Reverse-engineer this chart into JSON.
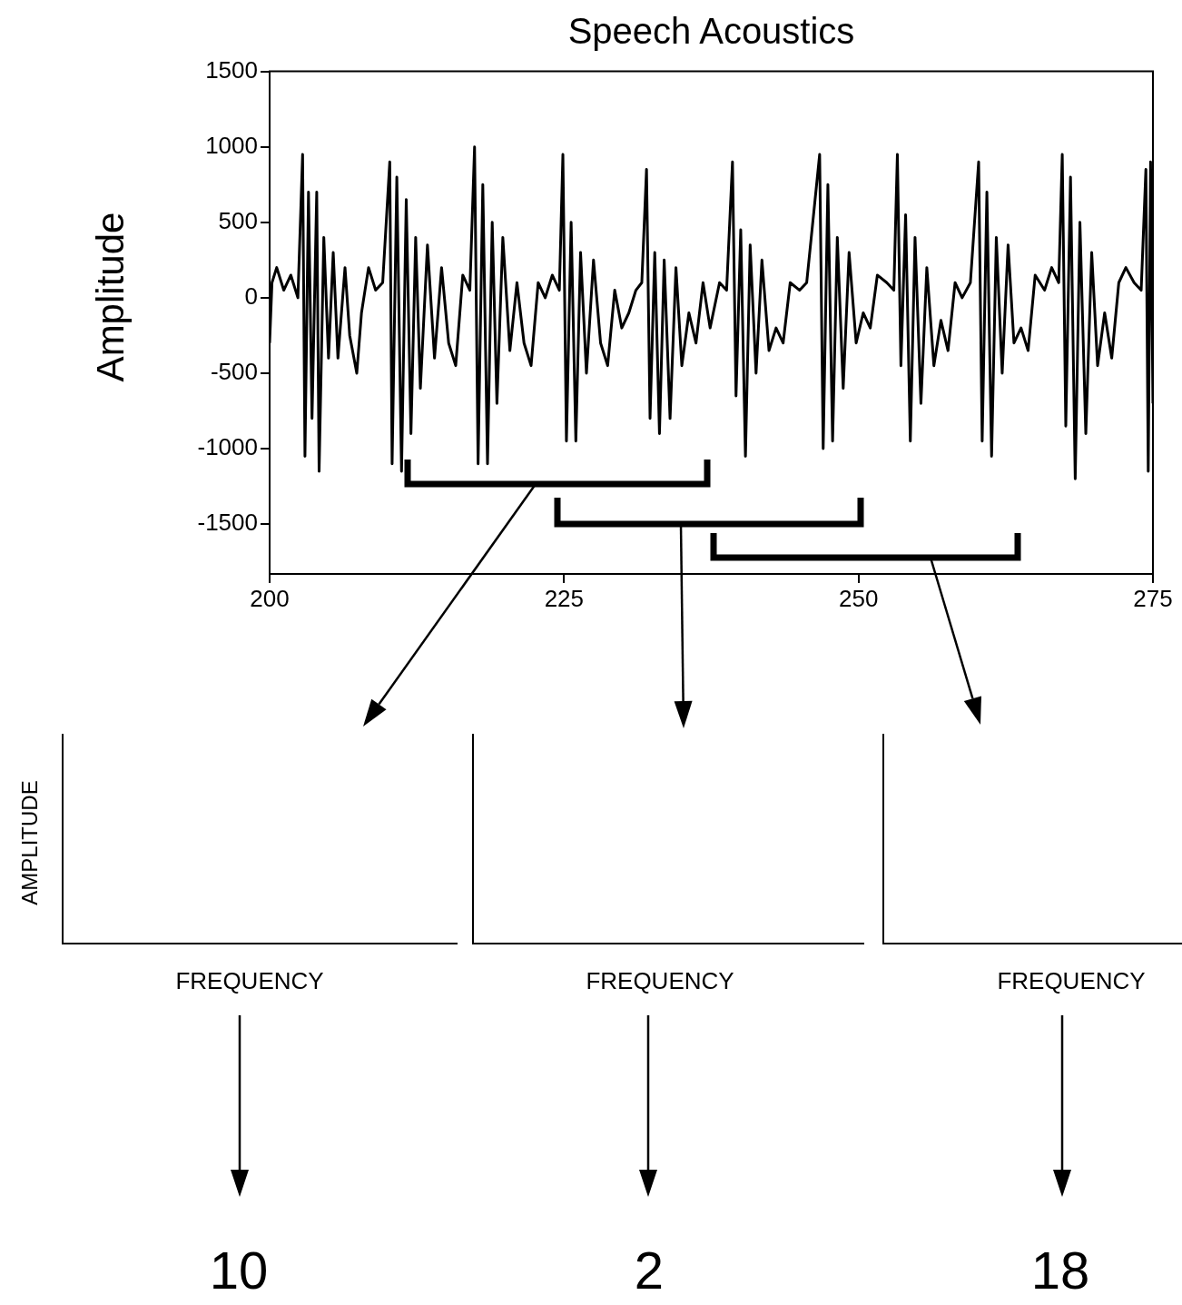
{
  "chart_data": [
    {
      "type": "line",
      "title": "Speech Acoustics",
      "ylabel": "Amplitude",
      "xlim": [
        200,
        275
      ],
      "xticks": [
        200,
        225,
        250,
        275
      ],
      "ylim": [
        -1830,
        1500
      ],
      "yticks": [
        1500,
        1000,
        500,
        0,
        -500,
        -1000,
        -1500
      ],
      "grid": false,
      "legend": false,
      "marker": "none",
      "line_style": "solid",
      "series": [
        {
          "color": "#000000",
          "x": [
            200,
            200.2,
            200.6,
            201.2,
            201.8,
            202.4,
            202.8,
            203.0,
            203.3,
            203.6,
            204.0,
            204.2,
            204.6,
            205.0,
            205.4,
            205.8,
            206.4,
            206.8,
            207.4,
            207.8,
            208.4,
            209.0,
            209.6,
            210.2,
            210.4,
            210.8,
            211.2,
            211.6,
            212.0,
            212.4,
            212.8,
            213.4,
            214.0,
            214.6,
            215.2,
            215.8,
            216.4,
            217.0,
            217.4,
            217.7,
            218.1,
            218.5,
            218.9,
            219.3,
            219.8,
            220.4,
            221.0,
            221.6,
            222.2,
            222.8,
            223.4,
            224.0,
            224.6,
            224.9,
            225.2,
            225.6,
            226.0,
            226.4,
            226.9,
            227.5,
            228.1,
            228.7,
            229.3,
            229.9,
            230.5,
            231.1,
            231.6,
            232.0,
            232.3,
            232.7,
            233.1,
            233.5,
            234.0,
            234.5,
            235.0,
            235.6,
            236.2,
            236.8,
            237.4,
            238.2,
            238.8,
            239.3,
            239.6,
            240.0,
            240.4,
            240.8,
            241.3,
            241.8,
            242.4,
            243.0,
            243.6,
            244.2,
            245.0,
            245.6,
            246.7,
            247.0,
            247.4,
            247.8,
            248.2,
            248.7,
            249.2,
            249.8,
            250.4,
            251.0,
            251.6,
            252.4,
            253.0,
            253.3,
            253.6,
            254.0,
            254.4,
            254.8,
            255.3,
            255.8,
            256.4,
            257.0,
            257.6,
            258.2,
            258.8,
            259.5,
            260.2,
            260.5,
            260.9,
            261.3,
            261.7,
            262.2,
            262.7,
            263.2,
            263.8,
            264.4,
            265.0,
            265.8,
            266.4,
            267.0,
            267.3,
            267.6,
            268.0,
            268.4,
            268.8,
            269.3,
            269.8,
            270.3,
            270.9,
            271.5,
            272.1,
            272.7,
            273.4,
            274.0,
            274.4,
            274.6,
            274.8,
            275
          ],
          "values": [
            -300,
            100,
            200,
            50,
            150,
            0,
            950,
            -1050,
            700,
            -800,
            700,
            -1150,
            400,
            -400,
            300,
            -400,
            200,
            -250,
            -500,
            -100,
            200,
            50,
            100,
            900,
            -1100,
            800,
            -1150,
            650,
            -900,
            400,
            -600,
            350,
            -400,
            200,
            -300,
            -450,
            150,
            50,
            1000,
            -1100,
            750,
            -1100,
            500,
            -700,
            400,
            -350,
            100,
            -300,
            -450,
            100,
            0,
            150,
            50,
            950,
            -950,
            500,
            -950,
            300,
            -500,
            250,
            -300,
            -450,
            50,
            -200,
            -100,
            50,
            100,
            850,
            -800,
            300,
            -900,
            250,
            -800,
            200,
            -450,
            -100,
            -300,
            100,
            -200,
            100,
            50,
            900,
            -650,
            450,
            -1050,
            350,
            -500,
            250,
            -350,
            -200,
            -300,
            100,
            50,
            100,
            950,
            -1000,
            750,
            -950,
            400,
            -600,
            300,
            -300,
            -100,
            -200,
            150,
            100,
            50,
            950,
            -450,
            550,
            -950,
            400,
            -700,
            200,
            -450,
            -150,
            -350,
            100,
            0,
            100,
            900,
            -950,
            700,
            -1050,
            400,
            -500,
            350,
            -300,
            -200,
            -350,
            150,
            50,
            200,
            100,
            950,
            -850,
            800,
            -1200,
            500,
            -900,
            300,
            -450,
            -100,
            -400,
            100,
            200,
            100,
            50,
            850,
            -1150,
            900,
            -700
          ]
        }
      ]
    },
    {
      "type": "other",
      "xlabel": "FREQUENCY",
      "ylabel": "AMPLITUDE",
      "annotations": [
        "10"
      ]
    },
    {
      "type": "other",
      "xlabel": "FREQUENCY",
      "annotations": [
        "2"
      ]
    },
    {
      "type": "other",
      "xlabel": "FREQUENCY",
      "annotations": [
        "18"
      ]
    }
  ]
}
